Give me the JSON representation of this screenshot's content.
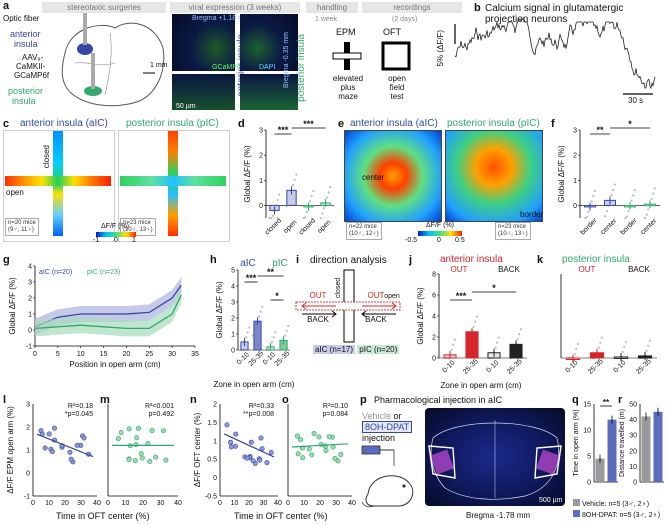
{
  "panels": {
    "a": "a",
    "b": "b",
    "c": "c",
    "d": "d",
    "e": "e",
    "f": "f",
    "g": "g",
    "h": "h",
    "i": "i",
    "j": "j",
    "k": "k",
    "l": "l",
    "m": "m",
    "n": "n",
    "o": "o",
    "p": "p",
    "q": "q",
    "r": "r"
  },
  "timeline": {
    "stage1": "stereotaxic surgeries",
    "stage2": "viral expression (3 weeks)",
    "stage3": "handling",
    "stage3b": "1 week",
    "stage4": "recordings",
    "stage4b": "(2 days)"
  },
  "panel_a": {
    "optic_fiber": "Optic fiber",
    "anterior": "anterior",
    "insula": "insula",
    "aav1": "AAV₉-",
    "aav2": "CaMKII-",
    "aav3": "GCaMP6f",
    "posterior": "posterior",
    "insula2": "insula",
    "scale": "1 mm",
    "ai_label": "anterior insula",
    "pi_label": "posterior insula",
    "bregma1": "Bregma +1.18 mm",
    "bregma2": "Bregma -0.35 mm",
    "gcamp": "GCaMP6f",
    "dapi": "DAPI",
    "scale2": "50 µm",
    "epm": "EPM",
    "oft": "OFT",
    "epm_desc": [
      "elevated",
      "plus",
      "maze"
    ],
    "oft_desc": [
      "open",
      "field",
      "test"
    ]
  },
  "panel_b": {
    "title": "Calcium signal in glutamatergic projection neurons",
    "ylab": "5% (ΔF/F)",
    "scale": "30 s"
  },
  "panel_c": {
    "title_ai": "anterior insula (aIC)",
    "title_pi": "posterior insula (pIC)",
    "closed": "closed",
    "open": "open",
    "n_ai": "n=20 mice",
    "n_ai2": "(9♂, 11♀)",
    "n_pi": "n=23 mice",
    "n_pi2": "(10♂, 13♀)",
    "cbar": "ΔF/F (%)",
    "cmin": "-1",
    "cmid": "0",
    "cmax": "1"
  },
  "panel_d": {
    "ylab": "Global ΔF/F (%)",
    "sig1": "***",
    "sig2": "***",
    "x": [
      "closed",
      "open",
      "closed",
      "open"
    ],
    "yticks": [
      "0",
      "1",
      "2",
      "3"
    ]
  },
  "panel_e": {
    "title_ai": "anterior insula (aIC)",
    "title_pi": "posterior insula (pIC)",
    "center": "center",
    "border": "border",
    "n_ai": "n=22 mice",
    "n_ai2": "(10♂, 12♀)",
    "n_pi": "n=23 mice",
    "n_pi2": "(10♂, 13♀)",
    "cbar": "ΔF/F (%)",
    "cmin": "-0.5",
    "cmid": "0",
    "cmax": "0.5"
  },
  "panel_f": {
    "ylab": "Global ΔF/F (%)",
    "sig1": "**",
    "sig2": "*",
    "x": [
      "border",
      "center",
      "border",
      "center"
    ],
    "yticks": [
      "0",
      "1",
      "2",
      "3"
    ]
  },
  "panel_g": {
    "legend_ai": "aIC (n=20)",
    "legend_pi": "pIC (n=23)",
    "ylab": "Global ΔF/F (%)",
    "xlab": "Position in open arm (cm)",
    "xticks": [
      "0",
      "5",
      "10",
      "15",
      "20",
      "25",
      "30",
      "35"
    ],
    "yticks": [
      "-1",
      "0",
      "1",
      "2",
      "3",
      "4"
    ]
  },
  "panel_h": {
    "t_ai": "aIC",
    "t_pi": "pIC",
    "sig1": "***",
    "sig2": "**",
    "sig3": "*",
    "ylab": "Global ΔF/F (%)",
    "xlab": "Zone in open arm (cm)",
    "x": [
      "0-10",
      "25-35",
      "0-10",
      "25-35"
    ],
    "yticks": [
      "0",
      "1",
      "2",
      "3",
      "4",
      "5"
    ]
  },
  "panel_i": {
    "title": "direction analysis",
    "closed": "closed",
    "open": "open",
    "out": "OUT",
    "back": "BACK",
    "legend_ai": "aIC (n=17)",
    "legend_pi": "pIC (n=20)"
  },
  "panel_j": {
    "title": "anterior insula",
    "out": "OUT",
    "back": "BACK",
    "sig1": "***",
    "sig2": "*",
    "ylab": "Global ΔF/F (%)",
    "xlab": "Zone in open arm (cm)",
    "x": [
      "0-10",
      "25-35",
      "0-10",
      "25-35"
    ],
    "yticks": [
      "0",
      "2",
      "4",
      "6",
      "8"
    ]
  },
  "panel_k": {
    "title": "posterior insula",
    "out": "OUT",
    "back": "BACK",
    "x": [
      "0-10",
      "25-35",
      "0-10",
      "25-35"
    ]
  },
  "panel_l": {
    "ylab": "ΔF/F EPM open arm (%)",
    "stat1": "R²=0.18",
    "stat2": "*p=0.045",
    "xticks": [
      "0",
      "10",
      "20",
      "30",
      "40"
    ],
    "yticks": [
      "-1",
      "0",
      "1",
      "2",
      "3"
    ]
  },
  "panel_m": {
    "stat1": "R²<0.001",
    "stat2": "p=0.492",
    "xticks": [
      "0",
      "10",
      "20",
      "30",
      "40"
    ]
  },
  "panel_n": {
    "ylab": "ΔF/F OFT center (%)",
    "stat1": "R²=0.33",
    "stat2": "**p=0.008",
    "xticks": [
      "0",
      "10",
      "20",
      "30",
      "40"
    ],
    "yticks": [
      "-0.5",
      "0",
      "0.5",
      "1",
      "1.5",
      "2"
    ]
  },
  "panel_o": {
    "stat1": "R²=0.10",
    "stat2": "p=0.084",
    "xticks": [
      "0",
      "10",
      "20",
      "30",
      "40"
    ]
  },
  "xlab_lm": "Time in OFT center (%)",
  "xlab_no": "Time in OFT center (%)",
  "panel_p": {
    "title": "Pharmacological injection in aIC",
    "vehicle": "Vehicle",
    "or": "or",
    "drug": "8OH-DPAT",
    "injection": "injection",
    "bregma": "Bregma -1.78 mm",
    "scale": "500 µm"
  },
  "panel_q": {
    "ylab": "Time in open arm (%)",
    "sig": "**",
    "yticks": [
      "0",
      "5",
      "10",
      "15"
    ]
  },
  "panel_r": {
    "ylab": "Distance travelled (m)",
    "yticks": [
      "0",
      "10",
      "20",
      "30",
      "40",
      "50"
    ]
  },
  "legend_qr": {
    "vehicle": "Vehicle: n=5 (3♂, 2♀)",
    "drug": "8OH-DPAT: n=5 (3♂, 2♀)"
  },
  "chart_data": [
    {
      "panel": "d",
      "type": "bar",
      "categories": [
        "aIC closed",
        "aIC open",
        "pIC closed",
        "pIC open"
      ],
      "values": [
        -0.2,
        0.6,
        -0.05,
        0.1
      ],
      "ylabel": "Global ΔF/F (%)",
      "ylim": [
        -0.5,
        3
      ]
    },
    {
      "panel": "f",
      "type": "bar",
      "categories": [
        "aIC border",
        "aIC center",
        "pIC border",
        "pIC center"
      ],
      "values": [
        -0.05,
        0.2,
        -0.02,
        0.05
      ],
      "ylabel": "Global ΔF/F (%)",
      "ylim": [
        -0.5,
        3
      ]
    },
    {
      "panel": "g",
      "type": "line",
      "x": [
        0,
        5,
        10,
        15,
        20,
        25,
        30,
        32
      ],
      "series": [
        {
          "name": "aIC (n=20)",
          "values": [
            0.2,
            0.8,
            1.0,
            1.0,
            1.0,
            1.1,
            2.0,
            2.8
          ]
        },
        {
          "name": "pIC (n=23)",
          "values": [
            0.1,
            0.2,
            0.3,
            0.2,
            0.1,
            0.1,
            1.0,
            2.2
          ]
        }
      ],
      "xlabel": "Position in open arm (cm)",
      "ylabel": "Global ΔF/F (%)",
      "ylim": [
        -1,
        4
      ]
    },
    {
      "panel": "h",
      "type": "bar",
      "categories": [
        "aIC 0-10",
        "aIC 25-35",
        "pIC 0-10",
        "pIC 25-35"
      ],
      "values": [
        0.5,
        1.8,
        0.2,
        0.6
      ],
      "ylabel": "Global ΔF/F (%)",
      "ylim": [
        0,
        5
      ]
    },
    {
      "panel": "j",
      "type": "bar",
      "categories": [
        "OUT 0-10",
        "OUT 25-35",
        "BACK 0-10",
        "BACK 25-35"
      ],
      "values": [
        0.3,
        2.5,
        0.5,
        1.3
      ],
      "ylabel": "Global ΔF/F (%)",
      "ylim": [
        0,
        8
      ]
    },
    {
      "panel": "k",
      "type": "bar",
      "categories": [
        "OUT 0-10",
        "OUT 25-35",
        "BACK 0-10",
        "BACK 25-35"
      ],
      "values": [
        -0.1,
        0.5,
        0.1,
        0.2
      ],
      "ylim": [
        0,
        8
      ]
    },
    {
      "panel": "q",
      "type": "bar",
      "categories": [
        "Vehicle",
        "8OH-DPAT"
      ],
      "values": [
        4.5,
        12
      ],
      "ylabel": "Time in open arm (%)",
      "ylim": [
        0,
        15
      ]
    },
    {
      "panel": "r",
      "type": "bar",
      "categories": [
        "Vehicle",
        "8OH-DPAT"
      ],
      "values": [
        42,
        45
      ],
      "ylabel": "Distance travelled (m)",
      "ylim": [
        0,
        50
      ]
    }
  ],
  "colors": {
    "blue": "#3446a6",
    "green": "#2fa86a",
    "red": "#d4252a",
    "grey": "#9a9a9a",
    "black": "#222"
  }
}
